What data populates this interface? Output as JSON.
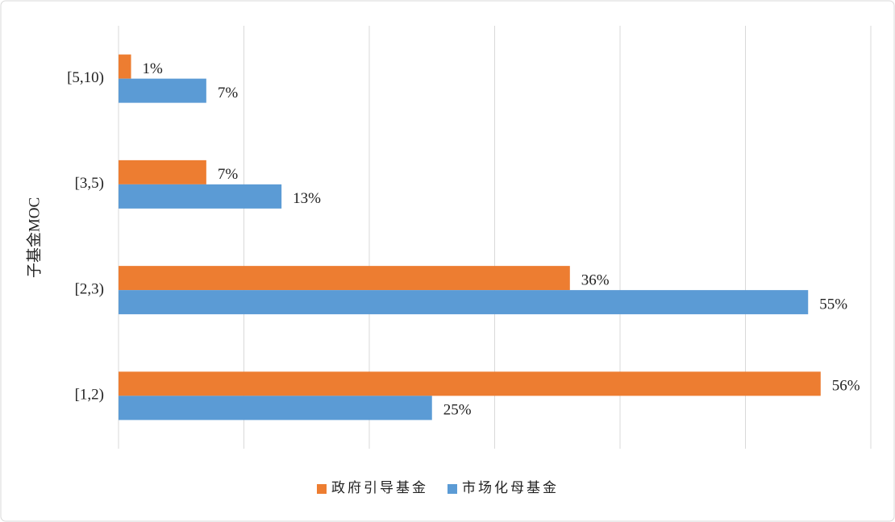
{
  "chart_data": {
    "type": "hbar",
    "y_label": "子基金MOC",
    "categories": [
      "[1,2)",
      "[2,3)",
      "[3,5)",
      "[5,10)"
    ],
    "series": [
      {
        "name": "政府引导基金",
        "color": "#ed7d31",
        "values": [
          56,
          36,
          7,
          1
        ],
        "value_labels": [
          "56%",
          "36%",
          "7%",
          "1%"
        ]
      },
      {
        "name": "市场化母基金",
        "color": "#5b9bd5",
        "values": [
          25,
          55,
          13,
          7
        ],
        "value_labels": [
          "25%",
          "55%",
          "13%",
          "7%"
        ]
      }
    ],
    "xlim": [
      0,
      60
    ],
    "xticks": [
      0,
      10,
      20,
      30,
      40,
      50,
      60
    ],
    "grid": true,
    "legend": "bottom"
  }
}
